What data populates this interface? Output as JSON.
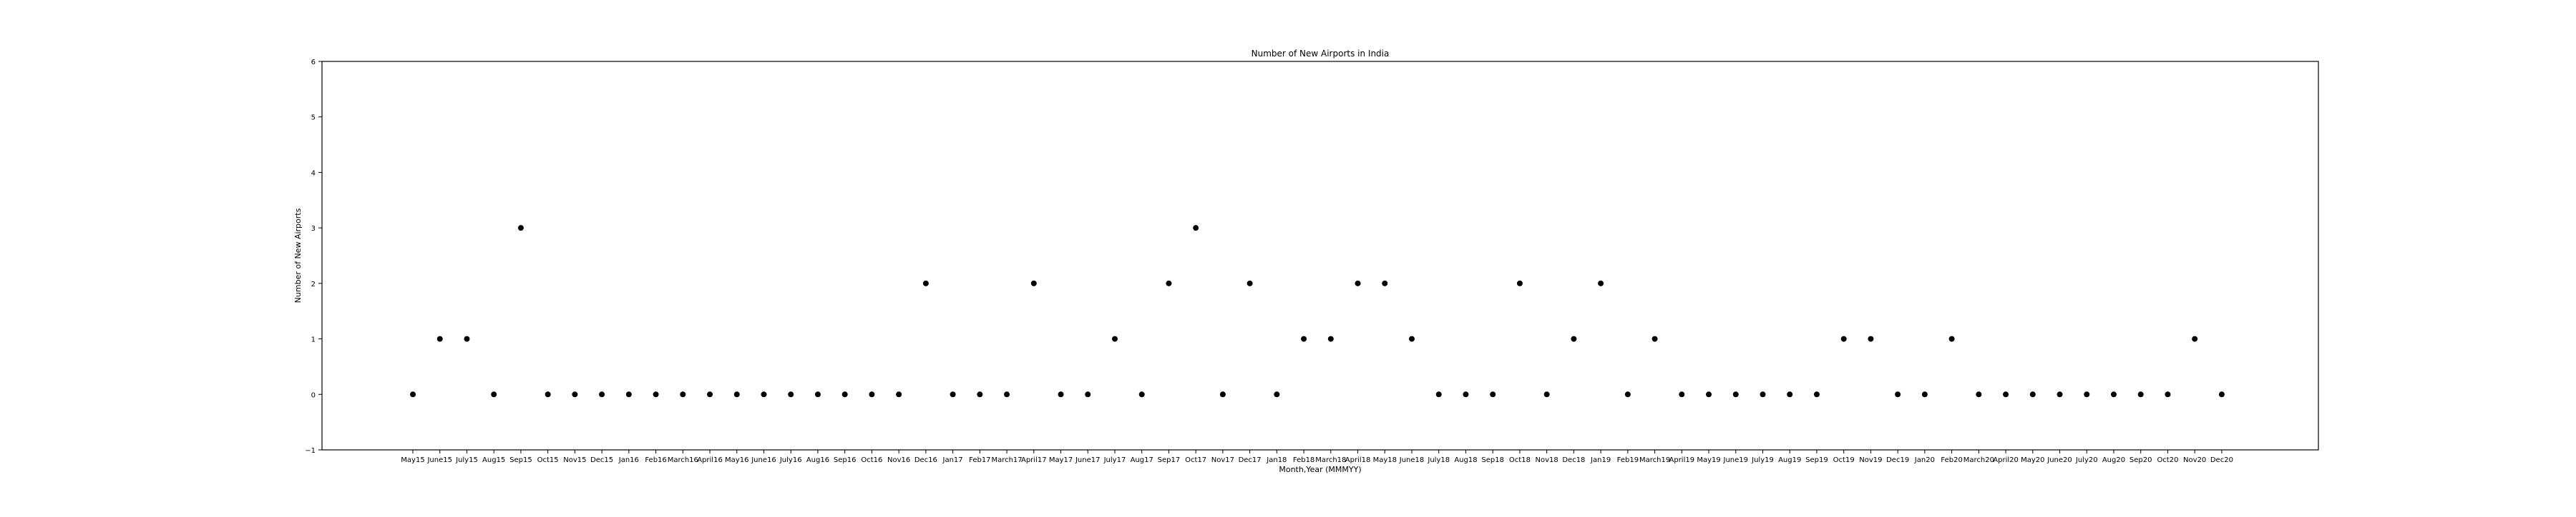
{
  "chart_data": {
    "type": "scatter",
    "title": "Number of New Airports in India",
    "xlabel": "Month,Year (MMMYY)",
    "ylabel": "Number of New Airports",
    "ylim": [
      -1,
      6
    ],
    "yticks": [
      -1,
      0,
      1,
      2,
      3,
      4,
      5,
      6
    ],
    "grid": false,
    "legend": "none",
    "marker_color": "#000000",
    "categories": [
      "May15",
      "June15",
      "July15",
      "Aug15",
      "Sep15",
      "Oct15",
      "Nov15",
      "Dec15",
      "Jan16",
      "Feb16",
      "March16",
      "April16",
      "May16",
      "June16",
      "July16",
      "Aug16",
      "Sep16",
      "Oct16",
      "Nov16",
      "Dec16",
      "Jan17",
      "Feb17",
      "March17",
      "April17",
      "May17",
      "June17",
      "July17",
      "Aug17",
      "Sep17",
      "Oct17",
      "Nov17",
      "Dec17",
      "Jan18",
      "Feb18",
      "March18",
      "April18",
      "May18",
      "June18",
      "July18",
      "Aug18",
      "Sep18",
      "Oct18",
      "Nov18",
      "Dec18",
      "Jan19",
      "Feb19",
      "March19",
      "April19",
      "May19",
      "June19",
      "July19",
      "Aug19",
      "Sep19",
      "Oct19",
      "Nov19",
      "Dec19",
      "Jan20",
      "Feb20",
      "March20",
      "April20",
      "May20",
      "June20",
      "July20",
      "Aug20",
      "Sep20",
      "Oct20",
      "Nov20",
      "Dec20"
    ],
    "values": [
      0,
      1,
      1,
      0,
      3,
      0,
      0,
      0,
      0,
      0,
      0,
      0,
      0,
      0,
      0,
      0,
      0,
      0,
      0,
      2,
      0,
      0,
      0,
      2,
      0,
      0,
      1,
      0,
      2,
      3,
      0,
      2,
      0,
      1,
      1,
      2,
      2,
      1,
      0,
      0,
      0,
      2,
      0,
      1,
      2,
      0,
      1,
      0,
      0,
      0,
      0,
      0,
      0,
      1,
      1,
      0,
      0,
      1,
      0,
      0,
      0,
      0,
      0,
      0,
      0,
      0,
      1,
      0
    ]
  }
}
